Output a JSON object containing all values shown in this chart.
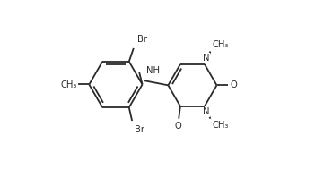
{
  "bg": "#ffffff",
  "lc": "#2a2a2a",
  "lw": 1.3,
  "fs": 7.2,
  "figsize": [
    3.51,
    1.89
  ],
  "dpi": 100,
  "xlim": [
    -0.05,
    1.05
  ],
  "ylim": [
    -0.05,
    1.05
  ]
}
